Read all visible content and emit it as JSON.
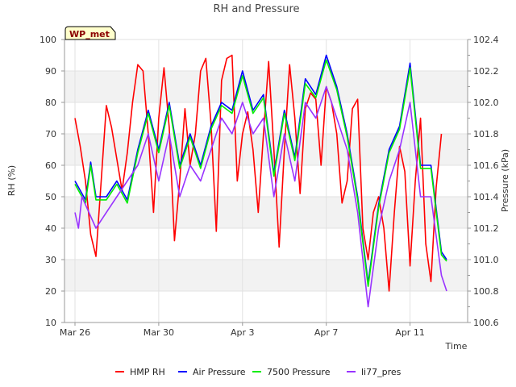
{
  "chart_data": {
    "type": "line",
    "title": "RH and Pressure",
    "badge": "WP_met",
    "xlabel": "Time",
    "ylabel_left": "RH (%)",
    "ylabel_right": "Pressure (kPa)",
    "x_range": [
      "2024-03-25T12:00",
      "2024-04-13T18:00"
    ],
    "x_ticks": [
      {
        "date": "2024-03-26",
        "label": "Mar 26"
      },
      {
        "date": "2024-03-30",
        "label": "Mar 30"
      },
      {
        "date": "2024-04-03",
        "label": "Apr 3"
      },
      {
        "date": "2024-04-07",
        "label": "Apr 7"
      },
      {
        "date": "2024-04-11",
        "label": "Apr 11"
      }
    ],
    "ylim_left": [
      10,
      100
    ],
    "y_ticks_left": [
      10,
      20,
      30,
      40,
      50,
      60,
      70,
      80,
      90,
      100
    ],
    "ylim_right": [
      100.6,
      102.4
    ],
    "y_ticks_right": [
      100.6,
      100.8,
      101.0,
      101.2,
      101.4,
      101.6,
      101.8,
      102.0,
      102.2,
      102.4
    ],
    "grid": true,
    "legend_position": "bottom",
    "series": [
      {
        "name": "HMP RH",
        "axis": "left",
        "color": "#ff0000",
        "points": [
          [
            "2024-03-26T00:00",
            75
          ],
          [
            "2024-03-26T06:00",
            66
          ],
          [
            "2024-03-26T12:00",
            55
          ],
          [
            "2024-03-26T18:00",
            38
          ],
          [
            "2024-03-27T00:00",
            31
          ],
          [
            "2024-03-27T06:00",
            55
          ],
          [
            "2024-03-27T12:00",
            79
          ],
          [
            "2024-03-27T18:00",
            72
          ],
          [
            "2024-03-28T00:00",
            62
          ],
          [
            "2024-03-28T06:00",
            52
          ],
          [
            "2024-03-28T12:00",
            64
          ],
          [
            "2024-03-28T18:00",
            80
          ],
          [
            "2024-03-29T00:00",
            92
          ],
          [
            "2024-03-29T06:00",
            90
          ],
          [
            "2024-03-29T12:00",
            70
          ],
          [
            "2024-03-29T18:00",
            45
          ],
          [
            "2024-03-30T00:00",
            75
          ],
          [
            "2024-03-30T06:00",
            91
          ],
          [
            "2024-03-30T12:00",
            72
          ],
          [
            "2024-03-30T18:00",
            36
          ],
          [
            "2024-03-31T00:00",
            55
          ],
          [
            "2024-03-31T06:00",
            78
          ],
          [
            "2024-03-31T12:00",
            60
          ],
          [
            "2024-03-31T18:00",
            70
          ],
          [
            "2024-04-01T00:00",
            90
          ],
          [
            "2024-04-01T06:00",
            94
          ],
          [
            "2024-04-01T12:00",
            73
          ],
          [
            "2024-04-01T18:00",
            39
          ],
          [
            "2024-04-02T00:00",
            87
          ],
          [
            "2024-04-02T06:00",
            94
          ],
          [
            "2024-04-02T12:00",
            95
          ],
          [
            "2024-04-02T18:00",
            55
          ],
          [
            "2024-04-03T00:00",
            70
          ],
          [
            "2024-04-03T06:00",
            77
          ],
          [
            "2024-04-03T12:00",
            65
          ],
          [
            "2024-04-03T18:00",
            45
          ],
          [
            "2024-04-04T00:00",
            70
          ],
          [
            "2024-04-04T06:00",
            93
          ],
          [
            "2024-04-04T12:00",
            65
          ],
          [
            "2024-04-04T18:00",
            34
          ],
          [
            "2024-04-05T00:00",
            65
          ],
          [
            "2024-04-05T06:00",
            92
          ],
          [
            "2024-04-05T12:00",
            75
          ],
          [
            "2024-04-05T18:00",
            51
          ],
          [
            "2024-04-06T00:00",
            78
          ],
          [
            "2024-04-06T06:00",
            83
          ],
          [
            "2024-04-06T12:00",
            81
          ],
          [
            "2024-04-06T18:00",
            60
          ],
          [
            "2024-04-07T00:00",
            85
          ],
          [
            "2024-04-07T06:00",
            80
          ],
          [
            "2024-04-07T12:00",
            70
          ],
          [
            "2024-04-07T18:00",
            48
          ],
          [
            "2024-04-08T00:00",
            55
          ],
          [
            "2024-04-08T06:00",
            78
          ],
          [
            "2024-04-08T12:00",
            81
          ],
          [
            "2024-04-08T18:00",
            40
          ],
          [
            "2024-04-09T00:00",
            30
          ],
          [
            "2024-04-09T06:00",
            45
          ],
          [
            "2024-04-09T12:00",
            50
          ],
          [
            "2024-04-09T18:00",
            40
          ],
          [
            "2024-04-10T00:00",
            20
          ],
          [
            "2024-04-10T06:00",
            45
          ],
          [
            "2024-04-10T12:00",
            66
          ],
          [
            "2024-04-10T18:00",
            58
          ],
          [
            "2024-04-11T00:00",
            28
          ],
          [
            "2024-04-11T06:00",
            55
          ],
          [
            "2024-04-11T12:00",
            75
          ],
          [
            "2024-04-11T18:00",
            35
          ],
          [
            "2024-04-12T00:00",
            23
          ],
          [
            "2024-04-12T06:00",
            53
          ],
          [
            "2024-04-12T12:00",
            70
          ]
        ]
      },
      {
        "name": "Air Pressure",
        "axis": "right",
        "color": "#0000ff",
        "points": [
          [
            "2024-03-26T00:00",
            101.5
          ],
          [
            "2024-03-26T12:00",
            101.38
          ],
          [
            "2024-03-26T18:00",
            101.62
          ],
          [
            "2024-03-27T00:00",
            101.4
          ],
          [
            "2024-03-27T12:00",
            101.4
          ],
          [
            "2024-03-28T00:00",
            101.5
          ],
          [
            "2024-03-28T12:00",
            101.38
          ],
          [
            "2024-03-29T00:00",
            101.7
          ],
          [
            "2024-03-29T12:00",
            101.95
          ],
          [
            "2024-03-30T00:00",
            101.7
          ],
          [
            "2024-03-30T12:00",
            102.0
          ],
          [
            "2024-03-31T00:00",
            101.6
          ],
          [
            "2024-03-31T12:00",
            101.8
          ],
          [
            "2024-04-01T00:00",
            101.6
          ],
          [
            "2024-04-01T12:00",
            101.85
          ],
          [
            "2024-04-02T00:00",
            102.0
          ],
          [
            "2024-04-02T12:00",
            101.95
          ],
          [
            "2024-04-03T00:00",
            102.2
          ],
          [
            "2024-04-03T12:00",
            101.95
          ],
          [
            "2024-04-04T00:00",
            102.05
          ],
          [
            "2024-04-04T12:00",
            101.55
          ],
          [
            "2024-04-05T00:00",
            101.95
          ],
          [
            "2024-04-05T12:00",
            101.65
          ],
          [
            "2024-04-06T00:00",
            102.15
          ],
          [
            "2024-04-06T12:00",
            102.05
          ],
          [
            "2024-04-07T00:00",
            102.3
          ],
          [
            "2024-04-07T12:00",
            102.1
          ],
          [
            "2024-04-08T00:00",
            101.8
          ],
          [
            "2024-04-08T12:00",
            101.4
          ],
          [
            "2024-04-09T00:00",
            100.85
          ],
          [
            "2024-04-09T12:00",
            101.35
          ],
          [
            "2024-04-10T00:00",
            101.7
          ],
          [
            "2024-04-10T12:00",
            101.85
          ],
          [
            "2024-04-11T00:00",
            102.25
          ],
          [
            "2024-04-11T12:00",
            101.6
          ],
          [
            "2024-04-12T00:00",
            101.6
          ],
          [
            "2024-04-12T12:00",
            101.05
          ],
          [
            "2024-04-12T18:00",
            101.0
          ]
        ]
      },
      {
        "name": "7500 Pressure",
        "axis": "right",
        "color": "#00ee00",
        "points": [
          [
            "2024-03-26T00:00",
            101.48
          ],
          [
            "2024-03-26T12:00",
            101.36
          ],
          [
            "2024-03-26T18:00",
            101.6
          ],
          [
            "2024-03-27T00:00",
            101.38
          ],
          [
            "2024-03-27T12:00",
            101.38
          ],
          [
            "2024-03-28T00:00",
            101.48
          ],
          [
            "2024-03-28T12:00",
            101.36
          ],
          [
            "2024-03-29T00:00",
            101.68
          ],
          [
            "2024-03-29T12:00",
            101.93
          ],
          [
            "2024-03-30T00:00",
            101.68
          ],
          [
            "2024-03-30T12:00",
            101.98
          ],
          [
            "2024-03-31T00:00",
            101.58
          ],
          [
            "2024-03-31T12:00",
            101.78
          ],
          [
            "2024-04-01T00:00",
            101.58
          ],
          [
            "2024-04-01T12:00",
            101.83
          ],
          [
            "2024-04-02T00:00",
            101.98
          ],
          [
            "2024-04-02T12:00",
            101.93
          ],
          [
            "2024-04-03T00:00",
            102.17
          ],
          [
            "2024-04-03T12:00",
            101.93
          ],
          [
            "2024-04-04T00:00",
            102.03
          ],
          [
            "2024-04-04T12:00",
            101.53
          ],
          [
            "2024-04-05T00:00",
            101.93
          ],
          [
            "2024-04-05T12:00",
            101.63
          ],
          [
            "2024-04-06T00:00",
            102.12
          ],
          [
            "2024-04-06T12:00",
            102.03
          ],
          [
            "2024-04-07T00:00",
            102.27
          ],
          [
            "2024-04-07T12:00",
            102.08
          ],
          [
            "2024-04-08T00:00",
            101.78
          ],
          [
            "2024-04-08T12:00",
            101.38
          ],
          [
            "2024-04-09T00:00",
            100.83
          ],
          [
            "2024-04-09T12:00",
            101.33
          ],
          [
            "2024-04-10T00:00",
            101.68
          ],
          [
            "2024-04-10T12:00",
            101.83
          ],
          [
            "2024-04-11T00:00",
            102.22
          ],
          [
            "2024-04-11T12:00",
            101.58
          ],
          [
            "2024-04-12T00:00",
            101.58
          ],
          [
            "2024-04-12T12:00",
            101.03
          ],
          [
            "2024-04-12T18:00",
            100.99
          ]
        ]
      },
      {
        "name": "li77_pres",
        "axis": "right",
        "color": "#9933ff",
        "points": [
          [
            "2024-03-26T00:00",
            101.3
          ],
          [
            "2024-03-26T04:00",
            101.2
          ],
          [
            "2024-03-26T08:00",
            101.4
          ],
          [
            "2024-03-26T16:00",
            101.3
          ],
          [
            "2024-03-27T00:00",
            101.2
          ],
          [
            "2024-03-27T12:00",
            101.3
          ],
          [
            "2024-03-28T00:00",
            101.4
          ],
          [
            "2024-03-28T12:00",
            101.5
          ],
          [
            "2024-03-29T00:00",
            101.6
          ],
          [
            "2024-03-29T12:00",
            101.8
          ],
          [
            "2024-03-30T00:00",
            101.5
          ],
          [
            "2024-03-30T12:00",
            101.8
          ],
          [
            "2024-03-31T00:00",
            101.4
          ],
          [
            "2024-03-31T12:00",
            101.6
          ],
          [
            "2024-04-01T00:00",
            101.5
          ],
          [
            "2024-04-01T12:00",
            101.7
          ],
          [
            "2024-04-02T00:00",
            101.9
          ],
          [
            "2024-04-02T12:00",
            101.8
          ],
          [
            "2024-04-03T00:00",
            102.0
          ],
          [
            "2024-04-03T12:00",
            101.8
          ],
          [
            "2024-04-04T00:00",
            101.9
          ],
          [
            "2024-04-04T12:00",
            101.4
          ],
          [
            "2024-04-05T00:00",
            101.8
          ],
          [
            "2024-04-05T12:00",
            101.5
          ],
          [
            "2024-04-06T00:00",
            102.0
          ],
          [
            "2024-04-06T12:00",
            101.9
          ],
          [
            "2024-04-07T00:00",
            102.1
          ],
          [
            "2024-04-07T12:00",
            101.9
          ],
          [
            "2024-04-08T00:00",
            101.7
          ],
          [
            "2024-04-08T12:00",
            101.3
          ],
          [
            "2024-04-09T00:00",
            100.7
          ],
          [
            "2024-04-09T12:00",
            101.2
          ],
          [
            "2024-04-10T00:00",
            101.5
          ],
          [
            "2024-04-10T12:00",
            101.7
          ],
          [
            "2024-04-11T00:00",
            102.0
          ],
          [
            "2024-04-11T12:00",
            101.4
          ],
          [
            "2024-04-12T00:00",
            101.4
          ],
          [
            "2024-04-12T12:00",
            100.9
          ],
          [
            "2024-04-12T18:00",
            100.8
          ]
        ]
      }
    ]
  }
}
